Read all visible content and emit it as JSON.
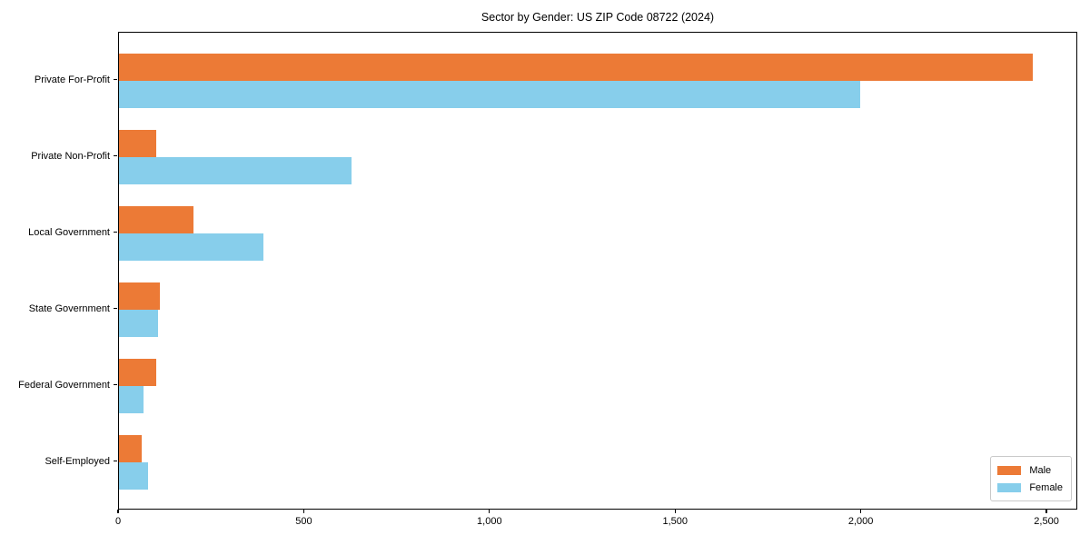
{
  "figure": {
    "background": "#ffffff"
  },
  "chart_data": {
    "type": "bar",
    "orientation": "horizontal",
    "title": "Sector by Gender: US ZIP Code 08722 (2024)",
    "xlabel": "",
    "ylabel": "",
    "categories": [
      "Private For-Profit",
      "Private Non-Profit",
      "Local Government",
      "State Government",
      "Federal Government",
      "Self-Employed"
    ],
    "series": [
      {
        "name": "Male",
        "color": "#EC7A36",
        "values": [
          2460,
          100,
          200,
          110,
          100,
          60
        ]
      },
      {
        "name": "Female",
        "color": "#87CEEB",
        "values": [
          1995,
          625,
          390,
          105,
          65,
          78
        ]
      }
    ],
    "xlim": [
      0,
      2583
    ],
    "xticks": [
      0,
      500,
      1000,
      1500,
      2000,
      2500
    ],
    "xtick_labels": [
      "0",
      "500",
      "1,000",
      "1,500",
      "2,000",
      "2,500"
    ],
    "grid": false,
    "legend_position": "lower right",
    "axis_color": "#000000"
  }
}
